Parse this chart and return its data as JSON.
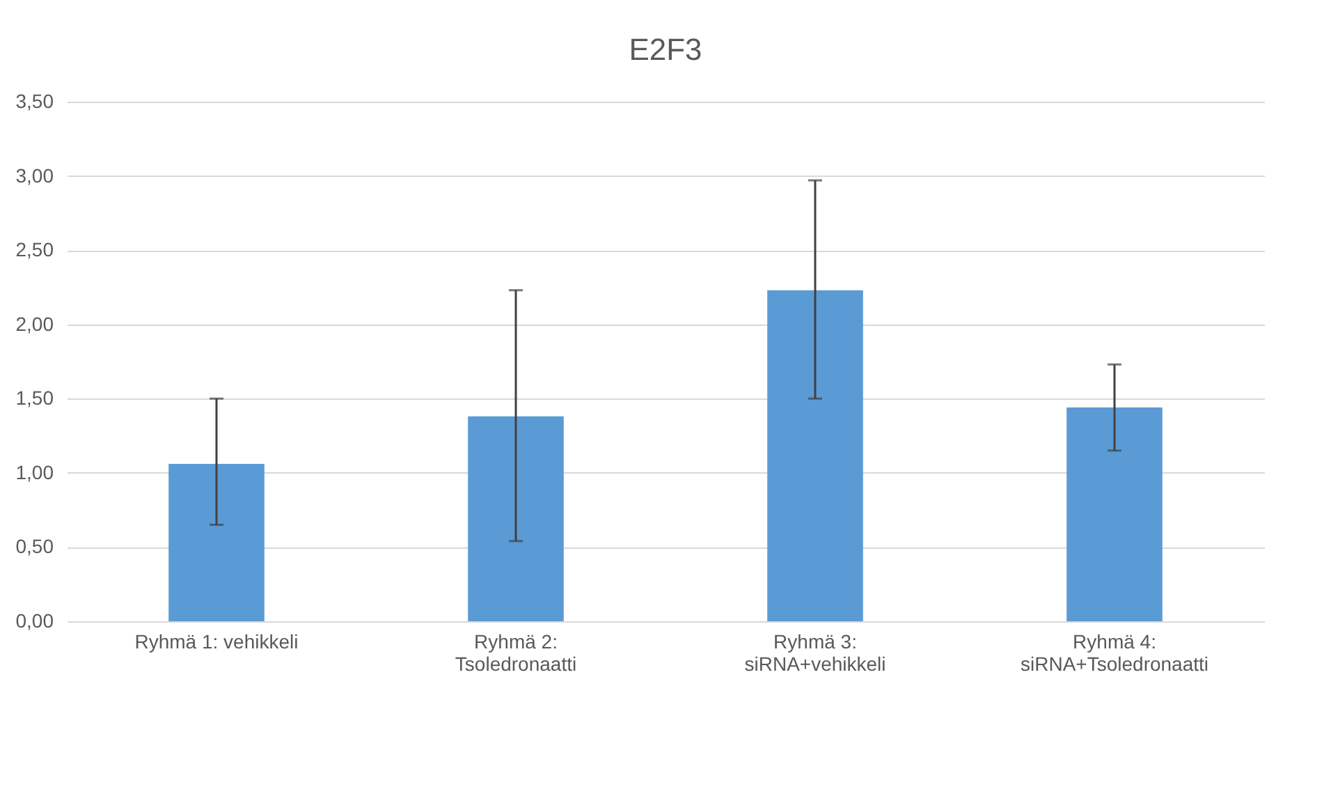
{
  "chart_data": {
    "type": "bar",
    "title": "E2F3",
    "categories": [
      "Ryhmä 1: vehikkeli",
      "Ryhmä 2: Tsoledronaatti",
      "Ryhmä 3: siRNA+vehikkeli",
      "Ryhmä 4: siRNA+Tsoledronaatti"
    ],
    "values": [
      1.06,
      1.38,
      2.23,
      1.44
    ],
    "errors": [
      [
        0.65,
        1.5
      ],
      [
        0.54,
        2.23
      ],
      [
        1.5,
        2.97
      ],
      [
        1.15,
        1.73
      ]
    ],
    "color": "#5b9bd5",
    "ylim": [
      0,
      3.5
    ],
    "yticks": [
      {
        "value": 0,
        "label": "0,00"
      },
      {
        "value": 0.5,
        "label": "0,50"
      },
      {
        "value": 1,
        "label": "1,00"
      },
      {
        "value": 1.5,
        "label": "1,50"
      },
      {
        "value": 2,
        "label": "2,00"
      },
      {
        "value": 2.5,
        "label": "2,50"
      },
      {
        "value": 3,
        "label": "3,00"
      },
      {
        "value": 3.5,
        "label": "3,50"
      }
    ],
    "grid": "y"
  }
}
